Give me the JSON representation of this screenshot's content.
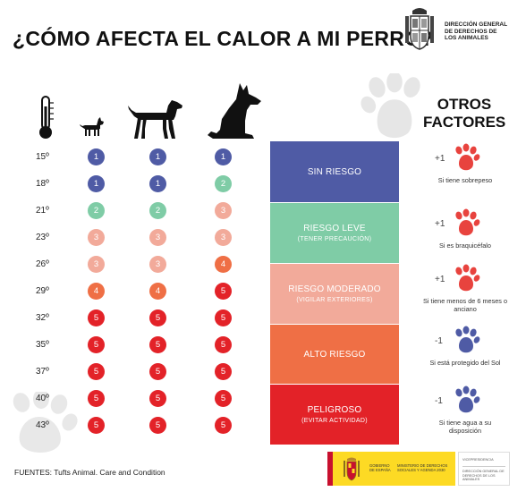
{
  "header": {
    "title": "¿CÓMO AFECTA EL CALOR A MI PERRO?",
    "dg_lines": [
      "DIRECCIÓN GENERAL",
      "DE DERECHOS DE",
      "LOS ANIMALES"
    ]
  },
  "temperatures": [
    "15º",
    "18º",
    "21º",
    "23º",
    "26º",
    "29º",
    "32º",
    "35º",
    "37º",
    "40º",
    "43º"
  ],
  "dogs": [
    "small-dog",
    "medium-dog",
    "large-dog"
  ],
  "risk_levels": {
    "small": [
      1,
      1,
      2,
      3,
      3,
      4,
      5,
      5,
      5,
      5,
      5
    ],
    "medium": [
      1,
      1,
      2,
      3,
      3,
      4,
      5,
      5,
      5,
      5,
      5
    ],
    "large": [
      1,
      2,
      3,
      3,
      4,
      5,
      5,
      5,
      5,
      5,
      5
    ]
  },
  "level_colors": {
    "1": "#4f5ba5",
    "2": "#7fcca6",
    "3": "#f2aa9a",
    "4": "#ef6f45",
    "5": "#e32228"
  },
  "legend": [
    {
      "label": "SIN RIESGO",
      "sub": "",
      "color": "#4f5ba5"
    },
    {
      "label": "RIESGO LEVE",
      "sub": "(TENER PRECAUCIÓN)",
      "color": "#7fcca6"
    },
    {
      "label": "RIESGO MODERADO",
      "sub": "(VIGILAR EXTERIORES)",
      "color": "#f2aa9a"
    },
    {
      "label": "ALTO RIESGO",
      "sub": "",
      "color": "#ef6f45"
    },
    {
      "label": "PELIGROSO",
      "sub": "(EVITAR ACTIVIDAD)",
      "color": "#e32228"
    }
  ],
  "otros": {
    "line1": "OTROS",
    "line2": "FACTORES"
  },
  "factors": [
    {
      "value": "+1",
      "text": "Si tiene sobrepeso",
      "color": "#e8433e"
    },
    {
      "value": "+1",
      "text": "Si es braquicéfalo",
      "color": "#e8433e"
    },
    {
      "value": "+1",
      "text": "Si tiene menos de 6 meses o anciano",
      "color": "#e8433e"
    },
    {
      "value": "-1",
      "text": "Si está protegido del Sol",
      "color": "#4f5ba5"
    },
    {
      "value": "-1",
      "text": "Si tiene agua a su disposición",
      "color": "#4f5ba5"
    }
  ],
  "source": "FUENTES: Tufts Animal. Care and Condition",
  "gov": {
    "t1": "GOBIERNO DE ESPAÑA",
    "t2": "MINISTERIO DE DERECHOS SOCIALES Y AGENDA 2030",
    "t3": "VICEPRESIDENCIA",
    "t4": "DIRECCIÓN GENERAL DE DERECHOS DE LOS ANIMALES"
  }
}
